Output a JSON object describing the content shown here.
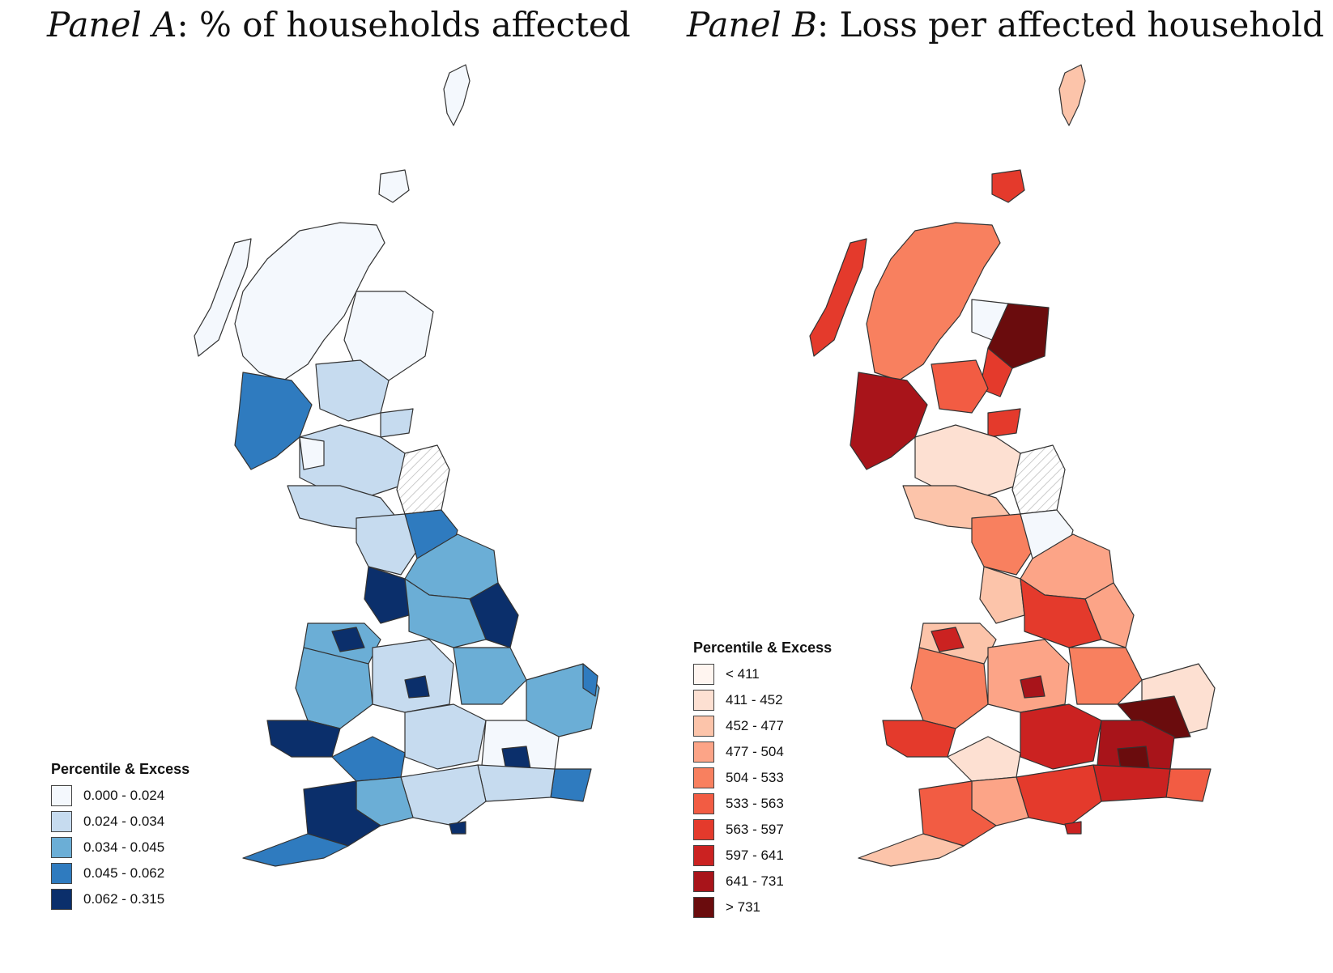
{
  "panel_a": {
    "title_prefix": "Panel A",
    "title_suffix": ": % of households affected",
    "legend_title": "Percentile & Excess",
    "legend": [
      {
        "label": "0.000 - 0.024",
        "color": "#f4f8fd"
      },
      {
        "label": "0.024 - 0.034",
        "color": "#c6dbef"
      },
      {
        "label": "0.034 - 0.045",
        "color": "#6baed6"
      },
      {
        "label": "0.045 - 0.062",
        "color": "#2f7bbf"
      },
      {
        "label": "0.062 - 0.315",
        "color": "#0b2f6b"
      }
    ]
  },
  "panel_b": {
    "title_prefix": "Panel B",
    "title_suffix": ": Loss per affected household",
    "legend_title": "Percentile & Excess",
    "legend": [
      {
        "label": "< 411",
        "color": "#fff5f0"
      },
      {
        "label": "411 - 452",
        "color": "#fde0d2"
      },
      {
        "label": "452 - 477",
        "color": "#fcc4aa"
      },
      {
        "label": "477 - 504",
        "color": "#fca487"
      },
      {
        "label": "504 - 533",
        "color": "#f8805f"
      },
      {
        "label": "533 - 563",
        "color": "#f25c43"
      },
      {
        "label": "563 - 597",
        "color": "#e43a2c"
      },
      {
        "label": "597 - 641",
        "color": "#cb2221"
      },
      {
        "label": "641 - 731",
        "color": "#a8141a"
      },
      {
        "label": "> 731",
        "color": "#6a0c0d"
      }
    ]
  }
}
